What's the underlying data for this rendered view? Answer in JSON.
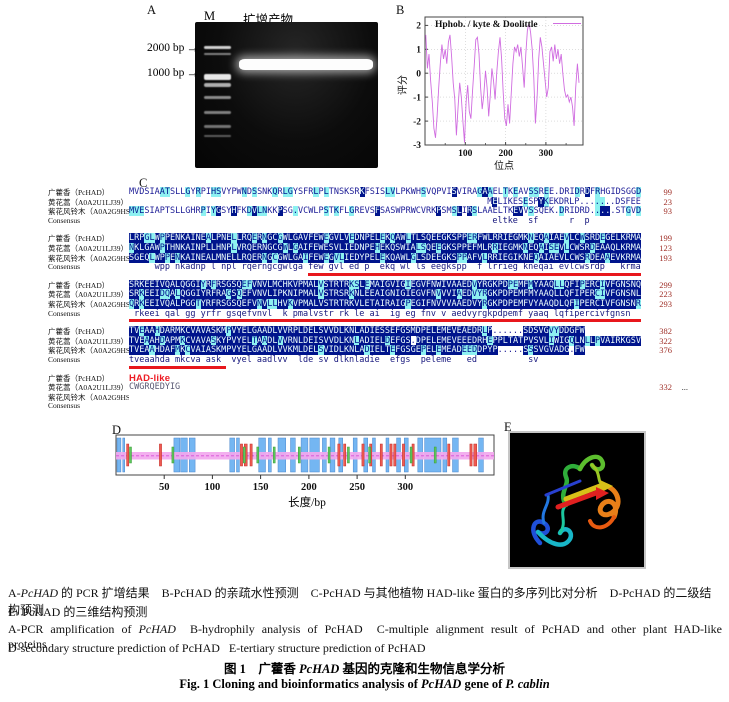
{
  "figure": {
    "panel_a": {
      "label": "A",
      "marker_lane": "M",
      "sample_lane": "扩增产物",
      "sizes": [
        {
          "text": "2000 bp",
          "arrow": "→"
        },
        {
          "text": "1000 bp",
          "arrow": "→"
        }
      ]
    },
    "panel_b": {
      "label": "B",
      "legend": "Hphob. / kyte & Doolittle",
      "xlabel": "位点",
      "ylabel": "评分"
    },
    "panel_c": {
      "label": "C",
      "row_labels": [
        "广藿香（PcHAD）",
        "黄花蒿（A0A2U1LJ39）",
        "紫花风铃木（A0A2G9HSW8）",
        "Consensus"
      ],
      "had_like_label": "HAD-like",
      "ellipsis": "...",
      "colors": {
        "conserved_bg": "#00148c",
        "similar_bg": "#8df1f1",
        "seq_text": "#1c1c96",
        "underline": "#e8171c",
        "numbers": "#a03028"
      },
      "blocks": [
        {
          "seqs": [
            "MVDSIAATSLLGYRPIHSVYPWNDSSNKQRLGYSFRLPLTNSKSRKFSISLVLPKWHSVQPVISVIRAGAAELTKEAVSSREE.DRIDRDFRHGIDSGGD",
            "                                                                      MELIKESESPYKEKDRLP.......DSFEE",
            "MVESIAPTSLLGHRPIYGSYHFKDVLNKKPSG.VCWLPSTKFLGREVSFSASWPRWCVRKPSMSLIRSLAAELTKEVVSSQEK.DRIDRD.....STGVD"
          ],
          "styles": [
            "light",
            "light",
            "light"
          ],
          "nums": [
            "99",
            "23",
            "93"
          ],
          "consensus": "                                                                       eltke  sf      r  p",
          "underline": null
        },
        {
          "seqs": [
            "LRPGLWPPENKAINEALPNELLRQERNGCGWLGAVFEWEGVLVEDNPELEKQAWLTLSQEEGKSPPERFWLRRIEGMKNEQAIAEVLCWSRDEGELKRMA",
            "NKLGAWPTHNKAINPLLHNPLVRQERNGCGWLGAIFEWESVLIEDNPEHEKQSWIALSQEEGKSPPEFMLRRIEGMKNEQAISEVLCWSRDEAAQLKRMA",
            "SGEQLWPPENKAINEALMNELLRQERNGCGWLGAIFEWEGVLIEDYPELEKQAWLGLSDEEGKSPPAFVLRRIEGIKNEQAIAEVLCWSRDEAAEVKRMA"
          ],
          "styles": [
            "dark",
            "dark",
            "dark"
          ],
          "nums": [
            "199",
            "123",
            "193"
          ],
          "consensus": "     wpp nkadnp l npl rqerngcgwlga few gvl ed p  ekq wl ls eegkspp  f lrrieg kneqai evlcwsrdp   krma",
          "underline": {
            "start": 35,
            "end": 100
          }
        },
        {
          "seqs": [
            "SRKEEIVQALQGGIYRFRSGSQEFVNVLMCHKVPMALVSTRTRKSLEMAIGVIGIEGVFNWIVAAEDVYRGKPDPEMFMYAAQLLQFIPERCIVFGNSNQ",
            "SRKEEIDQALQGGIYRFRAGSQEFVNVLIPKNIPMALVSTRSRKNLEEAIGNIGIEGVFNVVVIAEDVYRGKPDPEMFMYAAQLLQFIPERCIVFGNSNL",
            "QRKEEIVQALPGGTYRFRSGSQEFVNVLLHVKVPMALVSTRTRKVLETAIRAIGPEGIFNVVVAAEDVYRGKPDPEMFVYAAQDLQFIPERCIVFGNSNR"
          ],
          "styles": [
            "dark",
            "dark",
            "dark"
          ],
          "nums": [
            "299",
            "223",
            "293"
          ],
          "consensus": " rkeei qal gg yrfr gsqefvnvl  k pmalvstr rk le ai  ig eg fnv v aedvyrgkpdpemf yaaq lqfipercivfgnsn",
          "underline": {
            "start": 0,
            "end": 100
          }
        },
        {
          "seqs": [
            "TVEAAHDARMKCVAVASKMPVYELGAADLVVRPLDELSVVDLKNLADIESSEFGSMDPELEMEVEAEDRLP......SDSVGVYDDGFW",
            "TVEAAHDAPMKCVAVASKYPVYELTAADLVVRNLDEISVVDLKNLADIELDEFGS.DPELEMEVEEEDRHEPPLTATPVSVLIWIGQLNLLPVAIRKGSV",
            "TVEAAHDAFMKCVAIASKMPVYELGAADLVVKMLDELSVIDLKNLADIELTEFGSGEPELEMEADEEDDPYP.....SSSVGVADG.FW"
          ],
          "styles": [
            "dark",
            "dark",
            "dark"
          ],
          "nums": [
            "382",
            "322",
            "376"
          ],
          "consensus": "tveaahda mkcva ask  vyel aadlvv  lde sv dlknladie  efgs  peleme   ed          sv",
          "underline": {
            "start": 0,
            "end": 19
          }
        },
        {
          "special": "had",
          "seqs": [
            "",
            "CWGRQEDYIG",
            ""
          ],
          "styles": [
            "plain",
            "gray",
            "plain"
          ],
          "nums": [
            "",
            "332",
            ""
          ],
          "consensus": "",
          "underline": null,
          "ellipsis_row": 1
        }
      ]
    },
    "panel_d": {
      "label": "D",
      "xlabel": "长度/bp"
    },
    "panel_e": {
      "label": "E"
    },
    "captions": {
      "cn_line1": [
        {
          "t": "A-"
        },
        {
          "t": "PcHAD",
          "i": true
        },
        {
          "t": " 的 PCR 扩增结果　B-PcHAD 的亲疏水性预测　C-PcHAD 与其他植物 HAD-like 蛋白的多序列比对分析　D-PcHAD 的二级结构预测"
        }
      ],
      "cn_line2": [
        {
          "t": "E- PcHAD 的三维结构预测"
        }
      ],
      "en_line1": [
        {
          "t": "A-PCR amplification of "
        },
        {
          "t": "PcHAD",
          "i": true
        },
        {
          "t": "  B-hydrophily analysis of PcHAD  C-multiple alignment result of PcHAD and other plant HAD-like proteins"
        }
      ],
      "en_line2": [
        {
          "t": "D-secondary structure prediction of PcHAD   E-tertiary structure prediction of PcHAD"
        }
      ],
      "title_cn": [
        {
          "t": "图 1　广藿香 "
        },
        {
          "t": "PcHAD",
          "i": true
        },
        {
          "t": " 基因的克隆和生物信息学分析"
        }
      ],
      "title_en": [
        {
          "t": "Fig. 1   Cloning and bioinformatics analysis of "
        },
        {
          "t": "PcHAD",
          "i": true
        },
        {
          "t": " gene of "
        },
        {
          "t": "P. cablin",
          "i": true
        }
      ]
    }
  },
  "chart_data": [
    {
      "type": "line",
      "title": "Hphob. / kyte & Doolittle",
      "xlabel": "位点",
      "ylabel": "评分",
      "xlim": [
        0,
        392
      ],
      "ylim": [
        -3,
        2.35
      ],
      "xticks": [
        100,
        200,
        300
      ],
      "xticks_minor": [
        50,
        150,
        250,
        350
      ],
      "yticks": [
        2,
        1,
        0,
        -1,
        -2,
        -3
      ],
      "grid": true,
      "legend_position": "top-center",
      "line_color": "#d06ce0",
      "x": [
        2,
        6,
        10,
        14,
        18,
        22,
        26,
        30,
        34,
        38,
        42,
        46,
        50,
        54,
        58,
        62,
        66,
        70,
        74,
        78,
        82,
        86,
        90,
        94,
        98,
        102,
        106,
        110,
        114,
        118,
        122,
        126,
        130,
        134,
        138,
        142,
        146,
        150,
        154,
        158,
        162,
        166,
        170,
        174,
        178,
        182,
        186,
        190,
        194,
        198,
        202,
        206,
        210,
        214,
        218,
        222,
        226,
        230,
        234,
        238,
        242,
        246,
        250,
        254,
        258,
        262,
        266,
        270,
        274,
        278,
        282,
        286,
        290,
        294,
        298,
        302,
        306,
        310,
        314,
        318,
        322,
        326,
        330,
        334,
        338,
        342,
        346,
        350,
        354,
        358,
        362,
        366,
        370,
        374,
        378,
        382
      ],
      "y": [
        1.6,
        0.2,
        0.8,
        -0.3,
        -1.2,
        -2.3,
        -2.7,
        -1.8,
        -0.6,
        0.4,
        1.2,
        0.6,
        1.0,
        0.4,
        1.3,
        1.6,
        0.7,
        -0.4,
        -1.1,
        -2.6,
        -1.4,
        -0.4,
        -1.0,
        -2.0,
        -2.9,
        -1.2,
        -0.5,
        -1.6,
        -1.9,
        -0.7,
        0.3,
        1.4,
        1.5,
        0.8,
        -0.6,
        -1.5,
        -0.9,
        0.1,
        -0.6,
        -1.8,
        -0.9,
        0.2,
        -0.3,
        -1.1,
        0.0,
        0.9,
        1.5,
        0.6,
        -0.8,
        -1.9,
        -2.2,
        -1.3,
        -2.1,
        -0.8,
        0.4,
        1.1,
        0.9,
        1.2,
        0.7,
        1.1,
        0.3,
        -0.6,
        0.8,
        1.8,
        2.1,
        1.7,
        1.0,
        -0.2,
        -2.1,
        -1.0,
        0.6,
        1.5,
        1.1,
        0.4,
        -0.3,
        -1.0,
        -0.6,
        0.9,
        1.1,
        0.5,
        1.2,
        0.6,
        1.0,
        0.4,
        0.8,
        0.0,
        -0.7,
        -1.0,
        -0.9,
        -1.2,
        -1.0,
        -1.4,
        -2.2,
        -0.6,
        0.4,
        -0.4
      ]
    },
    {
      "type": "secondary-structure-map",
      "xlabel": "长度/bp",
      "xlim": [
        0,
        392
      ],
      "xticks": [
        50,
        100,
        150,
        200,
        250,
        300
      ],
      "colors": {
        "helix": "#74b6f2",
        "strand": "#ef5a52",
        "turn": "#5cc75c",
        "coil_band": "#f2a8ee",
        "coil_line": "#d84fd8"
      },
      "elements": {
        "helix": [
          [
            1,
            5
          ],
          [
            7,
            9
          ],
          [
            60,
            66
          ],
          [
            67,
            74
          ],
          [
            76,
            82
          ],
          [
            118,
            123
          ],
          [
            125,
            128
          ],
          [
            148,
            155
          ],
          [
            158,
            161
          ],
          [
            168,
            176
          ],
          [
            181,
            186
          ],
          [
            192,
            199
          ],
          [
            201,
            211
          ],
          [
            214,
            218
          ],
          [
            222,
            227
          ],
          [
            231,
            235
          ],
          [
            246,
            250
          ],
          [
            257,
            261
          ],
          [
            266,
            269
          ],
          [
            280,
            283
          ],
          [
            291,
            295
          ],
          [
            299,
            303
          ],
          [
            313,
            318
          ],
          [
            320,
            337
          ],
          [
            339,
            343
          ],
          [
            349,
            355
          ],
          [
            376,
            381
          ]
        ],
        "strand": [
          [
            11,
            12
          ],
          [
            45,
            46
          ],
          [
            129,
            131
          ],
          [
            133,
            136
          ],
          [
            139,
            140
          ],
          [
            230,
            231
          ],
          [
            236,
            238
          ],
          [
            255,
            256
          ],
          [
            263,
            264
          ],
          [
            274,
            276
          ],
          [
            284,
            286
          ],
          [
            288,
            290
          ],
          [
            297,
            298
          ],
          [
            307,
            308
          ],
          [
            344,
            345
          ],
          [
            367,
            369
          ],
          [
            371,
            374
          ]
        ],
        "turn": [
          [
            14,
            15
          ],
          [
            58,
            59
          ],
          [
            132,
            133
          ],
          [
            146,
            147
          ],
          [
            163,
            164
          ],
          [
            189,
            190
          ],
          [
            220,
            221
          ],
          [
            240,
            241
          ],
          [
            262,
            263
          ],
          [
            305,
            306
          ],
          [
            330,
            331
          ]
        ],
        "coil_band": "full-width"
      }
    }
  ]
}
